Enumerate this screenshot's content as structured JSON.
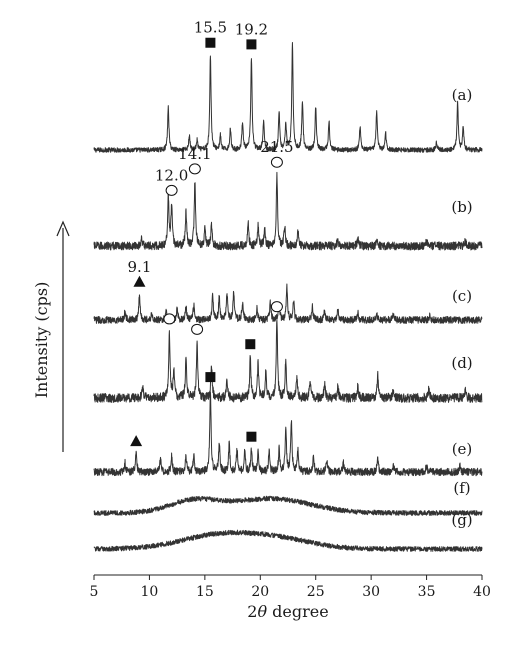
{
  "chart_data": {
    "type": "line",
    "xlabel": "2θ degree",
    "ylabel": "Intensity (cps)",
    "xlim": [
      5,
      40
    ],
    "x_ticks": [
      5,
      10,
      15,
      20,
      25,
      30,
      35,
      40
    ],
    "grid": false,
    "legend": "none",
    "series": [
      {
        "name": "(a)",
        "peaks": [
          [
            11.7,
            0.45
          ],
          [
            13.6,
            0.15
          ],
          [
            14.3,
            0.1
          ],
          [
            15.5,
            1.0
          ],
          [
            16.4,
            0.15
          ],
          [
            17.3,
            0.22
          ],
          [
            18.4,
            0.3
          ],
          [
            19.2,
            0.98
          ],
          [
            20.3,
            0.3
          ],
          [
            21.7,
            0.4
          ],
          [
            22.3,
            0.28
          ],
          [
            22.9,
            1.12
          ],
          [
            23.8,
            0.52
          ],
          [
            25.0,
            0.45
          ],
          [
            26.2,
            0.3
          ],
          [
            29.0,
            0.25
          ],
          [
            30.5,
            0.42
          ],
          [
            31.3,
            0.18
          ],
          [
            35.9,
            0.08
          ],
          [
            37.8,
            0.5
          ],
          [
            38.3,
            0.25
          ]
        ],
        "noise": 0.025
      },
      {
        "name": "(b)",
        "peaks": [
          [
            9.3,
            0.12
          ],
          [
            11.7,
            0.75
          ],
          [
            12.0,
            0.6
          ],
          [
            13.3,
            0.5
          ],
          [
            14.1,
            0.95
          ],
          [
            15.0,
            0.25
          ],
          [
            15.6,
            0.3
          ],
          [
            18.9,
            0.35
          ],
          [
            19.8,
            0.3
          ],
          [
            20.4,
            0.25
          ],
          [
            21.5,
            1.05
          ],
          [
            22.2,
            0.3
          ],
          [
            23.4,
            0.22
          ],
          [
            27.0,
            0.1
          ],
          [
            28.8,
            0.1
          ],
          [
            30.5,
            0.08
          ],
          [
            35.0,
            0.07
          ],
          [
            38.5,
            0.07
          ]
        ],
        "noise": 0.06
      },
      {
        "name": "(c)",
        "peaks": [
          [
            7.8,
            0.15
          ],
          [
            9.1,
            0.45
          ],
          [
            10.2,
            0.12
          ],
          [
            11.5,
            0.2
          ],
          [
            12.5,
            0.18
          ],
          [
            13.3,
            0.22
          ],
          [
            14.0,
            0.25
          ],
          [
            15.7,
            0.45
          ],
          [
            16.3,
            0.4
          ],
          [
            17.0,
            0.45
          ],
          [
            17.6,
            0.48
          ],
          [
            18.4,
            0.3
          ],
          [
            19.7,
            0.2
          ],
          [
            20.9,
            0.3
          ],
          [
            21.7,
            0.32
          ],
          [
            22.4,
            0.58
          ],
          [
            23.0,
            0.35
          ],
          [
            24.7,
            0.22
          ],
          [
            25.8,
            0.15
          ],
          [
            27.0,
            0.18
          ],
          [
            28.8,
            0.12
          ],
          [
            30.5,
            0.1
          ],
          [
            32.0,
            0.08
          ],
          [
            35.3,
            0.07
          ]
        ],
        "noise": 0.06
      },
      {
        "name": "(d)",
        "peaks": [
          [
            9.4,
            0.15
          ],
          [
            11.8,
            0.88
          ],
          [
            12.2,
            0.4
          ],
          [
            13.3,
            0.55
          ],
          [
            14.3,
            0.75
          ],
          [
            15.6,
            0.45
          ],
          [
            17.0,
            0.25
          ],
          [
            19.1,
            0.55
          ],
          [
            19.8,
            0.45
          ],
          [
            20.5,
            0.35
          ],
          [
            21.5,
            1.05
          ],
          [
            22.3,
            0.5
          ],
          [
            23.3,
            0.3
          ],
          [
            24.5,
            0.25
          ],
          [
            25.8,
            0.2
          ],
          [
            27.0,
            0.15
          ],
          [
            28.8,
            0.15
          ],
          [
            30.6,
            0.3
          ],
          [
            32.0,
            0.12
          ],
          [
            35.2,
            0.12
          ],
          [
            38.5,
            0.1
          ]
        ],
        "noise": 0.06
      },
      {
        "name": "(e)",
        "peaks": [
          [
            7.8,
            0.12
          ],
          [
            8.8,
            0.25
          ],
          [
            11.0,
            0.18
          ],
          [
            12.0,
            0.22
          ],
          [
            13.3,
            0.2
          ],
          [
            14.0,
            0.22
          ],
          [
            15.5,
            1.1
          ],
          [
            16.3,
            0.4
          ],
          [
            17.2,
            0.38
          ],
          [
            17.9,
            0.3
          ],
          [
            18.6,
            0.28
          ],
          [
            19.2,
            0.3
          ],
          [
            19.8,
            0.25
          ],
          [
            20.8,
            0.28
          ],
          [
            21.7,
            0.3
          ],
          [
            22.3,
            0.6
          ],
          [
            22.8,
            0.68
          ],
          [
            23.4,
            0.3
          ],
          [
            24.8,
            0.2
          ],
          [
            26.0,
            0.15
          ],
          [
            27.5,
            0.12
          ],
          [
            30.6,
            0.18
          ],
          [
            32.0,
            0.1
          ],
          [
            35.0,
            0.08
          ],
          [
            38.0,
            0.08
          ]
        ],
        "noise": 0.05
      },
      {
        "name": "(f)",
        "halos": [
          [
            14.0,
            0.15,
            2.2
          ],
          [
            21.0,
            0.18,
            3.5
          ]
        ],
        "noise": 0.03
      },
      {
        "name": "(g)",
        "halos": [
          [
            16.5,
            0.18,
            3.5
          ],
          [
            22.0,
            0.1,
            3.0
          ]
        ],
        "noise": 0.03
      }
    ],
    "annotations": [
      {
        "text": "15.5",
        "x": 15.5,
        "trace": "(a)"
      },
      {
        "text": "19.2",
        "x": 19.2,
        "trace": "(a)"
      },
      {
        "text": "12.0",
        "x": 12.0,
        "trace": "(b)"
      },
      {
        "text": "14.1",
        "x": 14.1,
        "trace": "(b)"
      },
      {
        "text": "21.5",
        "x": 21.5,
        "trace": "(b)"
      },
      {
        "text": "9.1",
        "x": 9.1,
        "trace": "(c)"
      }
    ],
    "markers": [
      {
        "shape": "square",
        "x": 15.5,
        "trace": "(a)"
      },
      {
        "shape": "square",
        "x": 19.2,
        "trace": "(a)"
      },
      {
        "shape": "circle",
        "x": 12.0,
        "trace": "(b)"
      },
      {
        "shape": "circle",
        "x": 14.1,
        "trace": "(b)"
      },
      {
        "shape": "circle",
        "x": 21.5,
        "trace": "(b)"
      },
      {
        "shape": "triangle",
        "x": 9.1,
        "trace": "(c)"
      },
      {
        "shape": "circle",
        "x": 11.8,
        "trace": "(d)"
      },
      {
        "shape": "circle",
        "x": 14.3,
        "trace": "(d)"
      },
      {
        "shape": "square",
        "x": 19.1,
        "trace": "(d)"
      },
      {
        "shape": "circle",
        "x": 21.5,
        "trace": "(d)"
      },
      {
        "shape": "square",
        "x": 15.5,
        "trace": "(e)"
      },
      {
        "shape": "triangle",
        "x": 8.8,
        "trace": "(e)"
      },
      {
        "shape": "square",
        "x": 19.2,
        "trace": "(e)"
      }
    ],
    "colors": {
      "line": "#333333",
      "marker": "#111111",
      "text": "#1a1a1a"
    }
  }
}
